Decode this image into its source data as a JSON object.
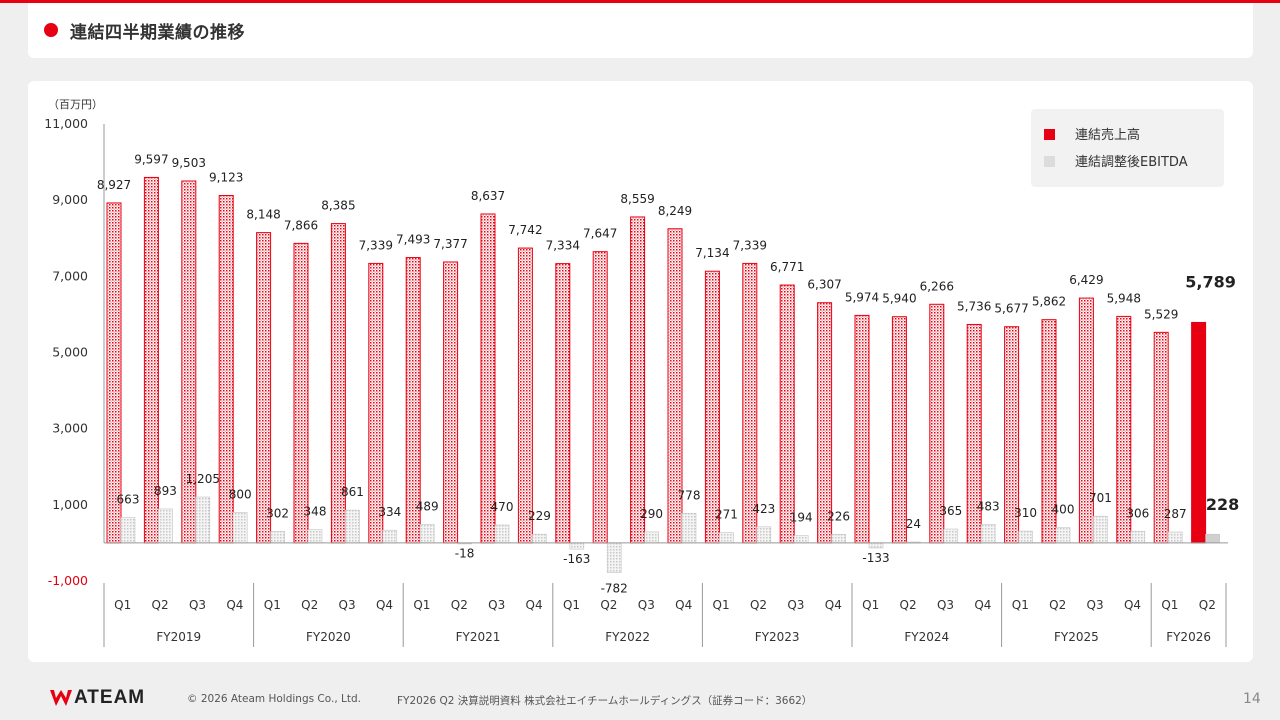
{
  "colors": {
    "accent": "#e60012",
    "ebitda": "#dcdcdc",
    "negative": "#e60012"
  },
  "header": {
    "title": "連結四半期業績の推移"
  },
  "chart_data": {
    "type": "bar",
    "unit_label": "（百万円）",
    "ylim": [
      -1000,
      11000
    ],
    "y_ticks": [
      "11,000",
      "9,000",
      "7,000",
      "5,000",
      "3,000",
      "1,000",
      "-1,000"
    ],
    "y_tick_values": [
      11000,
      9000,
      7000,
      5000,
      3000,
      1000,
      -1000
    ],
    "years": [
      "FY2019",
      "FY2020",
      "FY2021",
      "FY2022",
      "FY2023",
      "FY2024",
      "FY2025",
      "FY2026"
    ],
    "categories": [
      {
        "year": "FY2019",
        "q": "Q1"
      },
      {
        "year": "FY2019",
        "q": "Q2"
      },
      {
        "year": "FY2019",
        "q": "Q3"
      },
      {
        "year": "FY2019",
        "q": "Q4"
      },
      {
        "year": "FY2020",
        "q": "Q1"
      },
      {
        "year": "FY2020",
        "q": "Q2"
      },
      {
        "year": "FY2020",
        "q": "Q3"
      },
      {
        "year": "FY2020",
        "q": "Q4"
      },
      {
        "year": "FY2021",
        "q": "Q1"
      },
      {
        "year": "FY2021",
        "q": "Q2"
      },
      {
        "year": "FY2021",
        "q": "Q3"
      },
      {
        "year": "FY2021",
        "q": "Q4"
      },
      {
        "year": "FY2022",
        "q": "Q1"
      },
      {
        "year": "FY2022",
        "q": "Q2"
      },
      {
        "year": "FY2022",
        "q": "Q3"
      },
      {
        "year": "FY2022",
        "q": "Q4"
      },
      {
        "year": "FY2023",
        "q": "Q1"
      },
      {
        "year": "FY2023",
        "q": "Q2"
      },
      {
        "year": "FY2023",
        "q": "Q3"
      },
      {
        "year": "FY2023",
        "q": "Q4"
      },
      {
        "year": "FY2024",
        "q": "Q1"
      },
      {
        "year": "FY2024",
        "q": "Q2"
      },
      {
        "year": "FY2024",
        "q": "Q3"
      },
      {
        "year": "FY2024",
        "q": "Q4"
      },
      {
        "year": "FY2025",
        "q": "Q1"
      },
      {
        "year": "FY2025",
        "q": "Q2"
      },
      {
        "year": "FY2025",
        "q": "Q3"
      },
      {
        "year": "FY2025",
        "q": "Q4"
      },
      {
        "year": "FY2026",
        "q": "Q1"
      },
      {
        "year": "FY2026",
        "q": "Q2"
      }
    ],
    "series": [
      {
        "name": "連結売上高",
        "values": [
          8927,
          9597,
          9503,
          9123,
          8148,
          7866,
          8385,
          7339,
          7493,
          7377,
          8637,
          7742,
          7334,
          7647,
          8559,
          8249,
          7134,
          7339,
          6771,
          6307,
          5974,
          5940,
          6266,
          5736,
          5677,
          5862,
          6429,
          5948,
          5529,
          5789
        ],
        "labels": [
          "8,927",
          "9,597",
          "9,503",
          "9,123",
          "8,148",
          "7,866",
          "8,385",
          "7,339",
          "7,493",
          "7,377",
          "8,637",
          "7,742",
          "7,334",
          "7,647",
          "8,559",
          "8,249",
          "7,134",
          "7,339",
          "6,771",
          "6,307",
          "5,974",
          "5,940",
          "6,266",
          "5,736",
          "5,677",
          "5,862",
          "6,429",
          "5,948",
          "5,529",
          "5,789"
        ]
      },
      {
        "name": "連結調整後EBITDA",
        "values": [
          663,
          893,
          1205,
          800,
          302,
          348,
          861,
          334,
          489,
          -18,
          470,
          229,
          -163,
          -782,
          290,
          778,
          271,
          423,
          194,
          226,
          -133,
          24,
          365,
          483,
          310,
          400,
          701,
          306,
          287,
          228
        ],
        "labels": [
          "663",
          "893",
          "1,205",
          "800",
          "302",
          "348",
          "861",
          "334",
          "489",
          "-18",
          "470",
          "229",
          "-163",
          "-782",
          "290",
          "778",
          "271",
          "423",
          "194",
          "226",
          "-133",
          "24",
          "365",
          "483",
          "310",
          "400",
          "701",
          "306",
          "287",
          "228"
        ]
      }
    ],
    "legend": [
      "連結売上高",
      "連結調整後EBITDA"
    ],
    "legend_position": "top-right",
    "highlight_last": true
  },
  "footer": {
    "logo": "ATEAM",
    "copyright": "© 2026 Ateam Holdings Co., Ltd.",
    "doc_title": "FY2026 Q2 決算説明資料 株式会社エイチームホールディングス（証券コード：3662）",
    "page": "14"
  }
}
